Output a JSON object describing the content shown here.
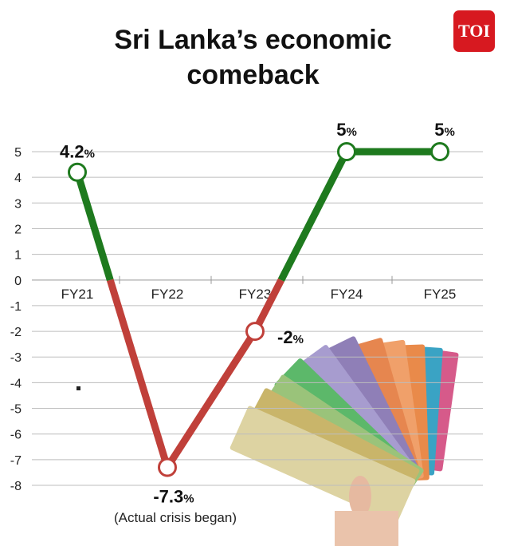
{
  "header": {
    "title_line1": "Sri Lanka’s economic",
    "title_line2": "comeback",
    "logo_text": "TOI",
    "logo_color": "#d71920"
  },
  "annotation": "(Actual crisis began)",
  "chart_data": {
    "type": "line",
    "title": "Sri Lanka’s economic comeback",
    "categories": [
      "FY21",
      "FY22",
      "FY23",
      "FY24",
      "FY25"
    ],
    "values": [
      4.2,
      -7.3,
      -2,
      5,
      5
    ],
    "value_labels": [
      "4.2",
      "-7.3",
      "-2",
      "5",
      "5"
    ],
    "unit": "%",
    "ylim": [
      -8,
      5
    ],
    "yticks": [
      5,
      4,
      3,
      2,
      1,
      0,
      -1,
      -2,
      -3,
      -4,
      -5,
      -6,
      -7,
      -8
    ],
    "grid": true,
    "colors": {
      "positive": "#1e7a1e",
      "negative": "#c0403a",
      "grid": "#bdbdbd"
    },
    "annotations": [
      {
        "category": "FY22",
        "text": "(Actual crisis began)"
      }
    ]
  }
}
